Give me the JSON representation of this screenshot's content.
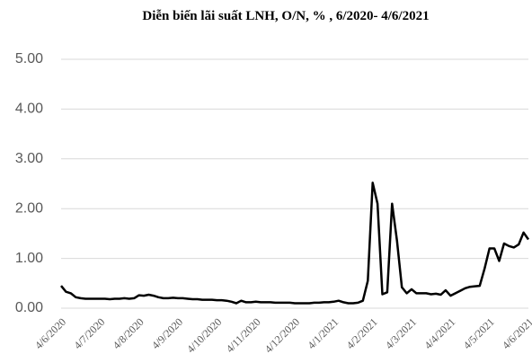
{
  "chart_data": {
    "type": "line",
    "title": "Diễn biến lãi suất LNH, O/N, % , 6/2020- 4/6/2021",
    "categories": [
      "4/6/2020",
      null,
      null,
      null,
      null,
      null,
      null,
      null,
      "4/7/2020",
      null,
      null,
      null,
      null,
      null,
      null,
      null,
      "4/8/2020",
      null,
      null,
      null,
      null,
      null,
      null,
      null,
      "4/9/2020",
      null,
      null,
      null,
      null,
      null,
      null,
      null,
      "4/10/2020",
      null,
      null,
      null,
      null,
      null,
      null,
      null,
      "4/11/2020",
      null,
      null,
      null,
      null,
      null,
      null,
      null,
      "4/12/2020",
      null,
      null,
      null,
      null,
      null,
      null,
      null,
      "4/1/2021",
      null,
      null,
      null,
      null,
      null,
      null,
      null,
      "4/2/2021",
      null,
      null,
      null,
      null,
      null,
      null,
      null,
      "4/3/2021",
      null,
      null,
      null,
      null,
      null,
      null,
      null,
      "4/4/2021",
      null,
      null,
      null,
      null,
      null,
      null,
      null,
      "4/5/2021",
      null,
      null,
      null,
      null,
      null,
      null,
      null,
      "4/6/2021"
    ],
    "values": [
      0.45,
      0.33,
      0.3,
      0.22,
      0.2,
      0.19,
      0.19,
      0.19,
      0.19,
      0.19,
      0.18,
      0.19,
      0.19,
      0.2,
      0.19,
      0.2,
      0.26,
      0.25,
      0.27,
      0.25,
      0.22,
      0.2,
      0.2,
      0.21,
      0.2,
      0.2,
      0.19,
      0.18,
      0.18,
      0.17,
      0.17,
      0.17,
      0.16,
      0.16,
      0.15,
      0.13,
      0.1,
      0.15,
      0.12,
      0.12,
      0.13,
      0.12,
      0.12,
      0.12,
      0.11,
      0.11,
      0.11,
      0.11,
      0.1,
      0.1,
      0.1,
      0.1,
      0.11,
      0.11,
      0.12,
      0.12,
      0.13,
      0.15,
      0.12,
      0.1,
      0.1,
      0.11,
      0.15,
      0.55,
      2.52,
      2.1,
      0.28,
      0.32,
      2.1,
      1.35,
      0.42,
      0.3,
      0.38,
      0.3,
      0.3,
      0.3,
      0.28,
      0.29,
      0.27,
      0.36,
      0.25,
      0.3,
      0.35,
      0.4,
      0.43,
      0.44,
      0.45,
      0.8,
      1.2,
      1.2,
      0.95,
      1.3,
      1.25,
      1.22,
      1.28,
      1.52,
      1.38
    ],
    "color": "#000000",
    "ylim": [
      0,
      5
    ],
    "yticks": [
      {
        "value": 0,
        "label": "0.00"
      },
      {
        "value": 1,
        "label": "1.00"
      },
      {
        "value": 2,
        "label": "2.00"
      },
      {
        "value": 3,
        "label": "3.00"
      },
      {
        "value": 4,
        "label": "4.00"
      },
      {
        "value": 5,
        "label": "5.00"
      }
    ],
    "grid": true
  }
}
